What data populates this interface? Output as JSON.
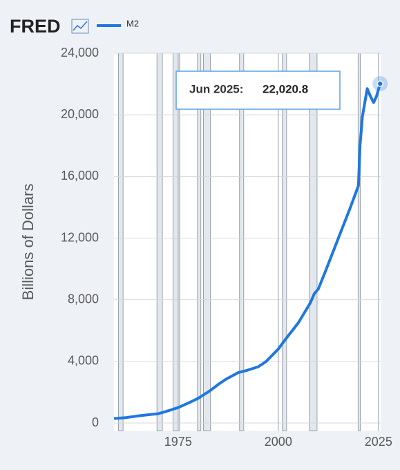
{
  "chart_data": {
    "type": "line",
    "logo": "FRED",
    "y_label": "Billions of Dollars",
    "x": [
      1959.0,
      1962.0,
      1965.0,
      1968.0,
      1970.0,
      1972.0,
      1975.0,
      1978.0,
      1980.0,
      1983.0,
      1985.0,
      1987.0,
      1990.0,
      1992.0,
      1995.0,
      1997.0,
      2000.0,
      2002.0,
      2005.0,
      2008.0,
      2009.0,
      2010.0,
      2012.0,
      2015.0,
      2018.0,
      2020.0,
      2020.4,
      2021.0,
      2022.2,
      2023.0,
      2023.8,
      2024.5,
      2025.42
    ],
    "series": [
      {
        "name": "M2",
        "color": "#1f77e0",
        "values": [
          290,
          350,
          460,
          550,
          600,
          750,
          1000,
          1350,
          1600,
          2100,
          2500,
          2850,
          3270,
          3400,
          3650,
          4000,
          4800,
          5500,
          6500,
          7800,
          8400,
          8700,
          10000,
          12000,
          14000,
          15400,
          18000,
          19900,
          21700,
          21200,
          20800,
          21200,
          22020.8
        ]
      }
    ],
    "recessions": [
      [
        1960.3,
        1961.1
      ],
      [
        1969.9,
        1970.9
      ],
      [
        1973.9,
        1975.2
      ],
      [
        1980.0,
        1980.5
      ],
      [
        1981.5,
        1982.9
      ],
      [
        1990.5,
        1991.2
      ],
      [
        2001.2,
        2001.9
      ],
      [
        2007.9,
        2009.5
      ],
      [
        2020.1,
        2020.3
      ]
    ],
    "xlim": [
      1959,
      2025.6
    ],
    "xticks": [
      1975,
      2000,
      2025
    ],
    "ylim": [
      0,
      24000
    ],
    "yticks": [
      0,
      {
        "value": 4000,
        "label": "4,000"
      },
      {
        "value": 8000,
        "label": "8,000"
      },
      {
        "value": 12000,
        "label": "12,000"
      },
      {
        "value": 16000,
        "label": "16,000"
      },
      {
        "value": 20000,
        "label": "20,000"
      },
      {
        "value": 24000,
        "label": "24,000"
      }
    ],
    "grid": true,
    "tooltip": {
      "date": "Jun 2025:",
      "value": 22020.8,
      "value_label": "22,020.8"
    }
  }
}
